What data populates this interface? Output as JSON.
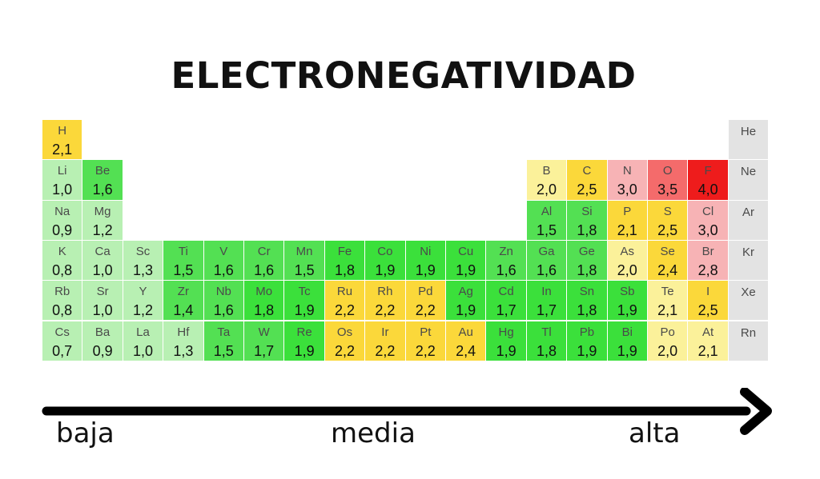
{
  "title": "ELECTRONEGATIVIDAD",
  "colors": {
    "lightgreen": "#b8f0b3",
    "green": "#53e053",
    "brightgreen": "#3be03b",
    "lightyellow": "#fbf19a",
    "yellow": "#fbd83a",
    "pink": "#f7b3b5",
    "salmon": "#f46b6b",
    "red": "#ee1c1c",
    "gray": "#e3e3e3"
  },
  "elements": [
    {
      "s": "H",
      "v": "2,1",
      "r": 0,
      "c": 0,
      "col": "yellow"
    },
    {
      "s": "He",
      "v": "",
      "r": 0,
      "c": 17,
      "col": "gray"
    },
    {
      "s": "Li",
      "v": "1,0",
      "r": 1,
      "c": 0,
      "col": "lightgreen"
    },
    {
      "s": "Be",
      "v": "1,6",
      "r": 1,
      "c": 1,
      "col": "green"
    },
    {
      "s": "B",
      "v": "2,0",
      "r": 1,
      "c": 12,
      "col": "lightyellow"
    },
    {
      "s": "C",
      "v": "2,5",
      "r": 1,
      "c": 13,
      "col": "yellow"
    },
    {
      "s": "N",
      "v": "3,0",
      "r": 1,
      "c": 14,
      "col": "pink"
    },
    {
      "s": "O",
      "v": "3,5",
      "r": 1,
      "c": 15,
      "col": "salmon"
    },
    {
      "s": "F",
      "v": "4,0",
      "r": 1,
      "c": 16,
      "col": "red"
    },
    {
      "s": "Ne",
      "v": "",
      "r": 1,
      "c": 17,
      "col": "gray"
    },
    {
      "s": "Na",
      "v": "0,9",
      "r": 2,
      "c": 0,
      "col": "lightgreen"
    },
    {
      "s": "Mg",
      "v": "1,2",
      "r": 2,
      "c": 1,
      "col": "lightgreen"
    },
    {
      "s": "Al",
      "v": "1,5",
      "r": 2,
      "c": 12,
      "col": "green"
    },
    {
      "s": "Si",
      "v": "1,8",
      "r": 2,
      "c": 13,
      "col": "green"
    },
    {
      "s": "P",
      "v": "2,1",
      "r": 2,
      "c": 14,
      "col": "yellow"
    },
    {
      "s": "S",
      "v": "2,5",
      "r": 2,
      "c": 15,
      "col": "yellow"
    },
    {
      "s": "Cl",
      "v": "3,0",
      "r": 2,
      "c": 16,
      "col": "pink"
    },
    {
      "s": "Ar",
      "v": "",
      "r": 2,
      "c": 17,
      "col": "gray"
    },
    {
      "s": "K",
      "v": "0,8",
      "r": 3,
      "c": 0,
      "col": "lightgreen"
    },
    {
      "s": "Ca",
      "v": "1,0",
      "r": 3,
      "c": 1,
      "col": "lightgreen"
    },
    {
      "s": "Sc",
      "v": "1,3",
      "r": 3,
      "c": 2,
      "col": "lightgreen"
    },
    {
      "s": "Ti",
      "v": "1,5",
      "r": 3,
      "c": 3,
      "col": "green"
    },
    {
      "s": "V",
      "v": "1,6",
      "r": 3,
      "c": 4,
      "col": "green"
    },
    {
      "s": "Cr",
      "v": "1,6",
      "r": 3,
      "c": 5,
      "col": "green"
    },
    {
      "s": "Mn",
      "v": "1,5",
      "r": 3,
      "c": 6,
      "col": "green"
    },
    {
      "s": "Fe",
      "v": "1,8",
      "r": 3,
      "c": 7,
      "col": "brightgreen"
    },
    {
      "s": "Co",
      "v": "1,9",
      "r": 3,
      "c": 8,
      "col": "brightgreen"
    },
    {
      "s": "Ni",
      "v": "1,9",
      "r": 3,
      "c": 9,
      "col": "brightgreen"
    },
    {
      "s": "Cu",
      "v": "1,9",
      "r": 3,
      "c": 10,
      "col": "brightgreen"
    },
    {
      "s": "Zn",
      "v": "1,6",
      "r": 3,
      "c": 11,
      "col": "green"
    },
    {
      "s": "Ga",
      "v": "1,6",
      "r": 3,
      "c": 12,
      "col": "green"
    },
    {
      "s": "Ge",
      "v": "1,8",
      "r": 3,
      "c": 13,
      "col": "green"
    },
    {
      "s": "As",
      "v": "2,0",
      "r": 3,
      "c": 14,
      "col": "lightyellow"
    },
    {
      "s": "Se",
      "v": "2,4",
      "r": 3,
      "c": 15,
      "col": "yellow"
    },
    {
      "s": "Br",
      "v": "2,8",
      "r": 3,
      "c": 16,
      "col": "pink"
    },
    {
      "s": "Kr",
      "v": "",
      "r": 3,
      "c": 17,
      "col": "gray"
    },
    {
      "s": "Rb",
      "v": "0,8",
      "r": 4,
      "c": 0,
      "col": "lightgreen"
    },
    {
      "s": "Sr",
      "v": "1,0",
      "r": 4,
      "c": 1,
      "col": "lightgreen"
    },
    {
      "s": "Y",
      "v": "1,2",
      "r": 4,
      "c": 2,
      "col": "lightgreen"
    },
    {
      "s": "Zr",
      "v": "1,4",
      "r": 4,
      "c": 3,
      "col": "green"
    },
    {
      "s": "Nb",
      "v": "1,6",
      "r": 4,
      "c": 4,
      "col": "green"
    },
    {
      "s": "Mo",
      "v": "1,8",
      "r": 4,
      "c": 5,
      "col": "brightgreen"
    },
    {
      "s": "Tc",
      "v": "1,9",
      "r": 4,
      "c": 6,
      "col": "brightgreen"
    },
    {
      "s": "Ru",
      "v": "2,2",
      "r": 4,
      "c": 7,
      "col": "yellow"
    },
    {
      "s": "Rh",
      "v": "2,2",
      "r": 4,
      "c": 8,
      "col": "yellow"
    },
    {
      "s": "Pd",
      "v": "2,2",
      "r": 4,
      "c": 9,
      "col": "yellow"
    },
    {
      "s": "Ag",
      "v": "1,9",
      "r": 4,
      "c": 10,
      "col": "brightgreen"
    },
    {
      "s": "Cd",
      "v": "1,7",
      "r": 4,
      "c": 11,
      "col": "brightgreen"
    },
    {
      "s": "In",
      "v": "1,7",
      "r": 4,
      "c": 12,
      "col": "brightgreen"
    },
    {
      "s": "Sn",
      "v": "1,8",
      "r": 4,
      "c": 13,
      "col": "brightgreen"
    },
    {
      "s": "Sb",
      "v": "1,9",
      "r": 4,
      "c": 14,
      "col": "brightgreen"
    },
    {
      "s": "Te",
      "v": "2,1",
      "r": 4,
      "c": 15,
      "col": "lightyellow"
    },
    {
      "s": "I",
      "v": "2,5",
      "r": 4,
      "c": 16,
      "col": "yellow"
    },
    {
      "s": "Xe",
      "v": "",
      "r": 4,
      "c": 17,
      "col": "gray"
    },
    {
      "s": "Cs",
      "v": "0,7",
      "r": 5,
      "c": 0,
      "col": "lightgreen"
    },
    {
      "s": "Ba",
      "v": "0,9",
      "r": 5,
      "c": 1,
      "col": "lightgreen"
    },
    {
      "s": "La",
      "v": "1,0",
      "r": 5,
      "c": 2,
      "col": "lightgreen"
    },
    {
      "s": "Hf",
      "v": "1,3",
      "r": 5,
      "c": 3,
      "col": "lightgreen"
    },
    {
      "s": "Ta",
      "v": "1,5",
      "r": 5,
      "c": 4,
      "col": "green"
    },
    {
      "s": "W",
      "v": "1,7",
      "r": 5,
      "c": 5,
      "col": "green"
    },
    {
      "s": "Re",
      "v": "1,9",
      "r": 5,
      "c": 6,
      "col": "brightgreen"
    },
    {
      "s": "Os",
      "v": "2,2",
      "r": 5,
      "c": 7,
      "col": "yellow"
    },
    {
      "s": "Ir",
      "v": "2,2",
      "r": 5,
      "c": 8,
      "col": "yellow"
    },
    {
      "s": "Pt",
      "v": "2,2",
      "r": 5,
      "c": 9,
      "col": "yellow"
    },
    {
      "s": "Au",
      "v": "2,4",
      "r": 5,
      "c": 10,
      "col": "yellow"
    },
    {
      "s": "Hg",
      "v": "1,9",
      "r": 5,
      "c": 11,
      "col": "brightgreen"
    },
    {
      "s": "Tl",
      "v": "1,8",
      "r": 5,
      "c": 12,
      "col": "brightgreen"
    },
    {
      "s": "Pb",
      "v": "1,9",
      "r": 5,
      "c": 13,
      "col": "brightgreen"
    },
    {
      "s": "Bi",
      "v": "1,9",
      "r": 5,
      "c": 14,
      "col": "brightgreen"
    },
    {
      "s": "Po",
      "v": "2,0",
      "r": 5,
      "c": 15,
      "col": "lightyellow"
    },
    {
      "s": "At",
      "v": "2,1",
      "r": 5,
      "c": 16,
      "col": "lightyellow"
    },
    {
      "s": "Rn",
      "v": "",
      "r": 5,
      "c": 17,
      "col": "gray"
    }
  ],
  "scale": {
    "low": "baja",
    "mid": "media",
    "high": "alta"
  }
}
